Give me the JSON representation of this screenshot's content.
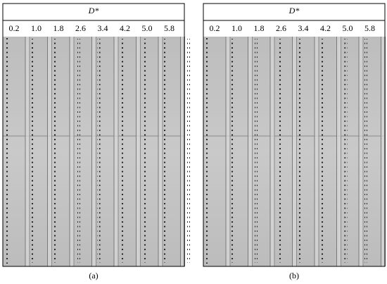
{
  "panels": [
    {
      "header": "D*",
      "columns": [
        "0.2",
        "1.0",
        "1.8",
        "2.6",
        "3.4",
        "4.2",
        "5.0",
        "5.8"
      ],
      "caption": "(a)"
    },
    {
      "header": "D*",
      "columns": [
        "0.2",
        "1.0",
        "1.8",
        "2.6",
        "3.4",
        "4.2",
        "5.0",
        "5.8"
      ],
      "caption": "(b)"
    }
  ]
}
